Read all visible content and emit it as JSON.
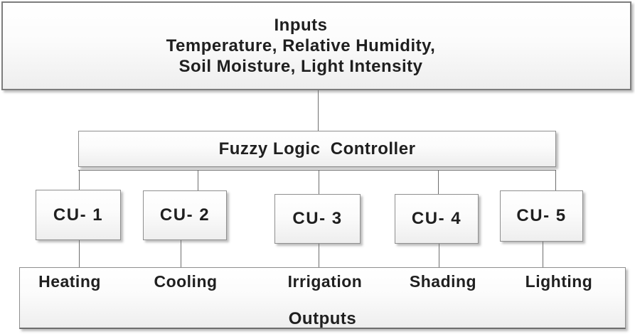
{
  "diagram": {
    "inputs": {
      "title": "Inputs",
      "subtitle_line1": "Temperature, Relative Humidity,",
      "subtitle_line2": "Soil Moisture, Light Intensity"
    },
    "controller": {
      "label": "Fuzzy Logic  Controller"
    },
    "control_units": [
      {
        "label": "CU- 1"
      },
      {
        "label": "CU- 2"
      },
      {
        "label": "CU- 3"
      },
      {
        "label": "CU- 4"
      },
      {
        "label": "CU- 5"
      }
    ],
    "outputs": {
      "labels": [
        "Heating",
        "Cooling",
        "Irrigation",
        "Shading",
        "Lighting"
      ],
      "title": "Outputs"
    },
    "colors": {
      "box_border": "#8f8f8f",
      "box_fill_top": "#ffffff",
      "box_fill_bottom": "#eeeeee",
      "connector_line": "#6e6e6e",
      "text": "#1f1f1f"
    }
  }
}
